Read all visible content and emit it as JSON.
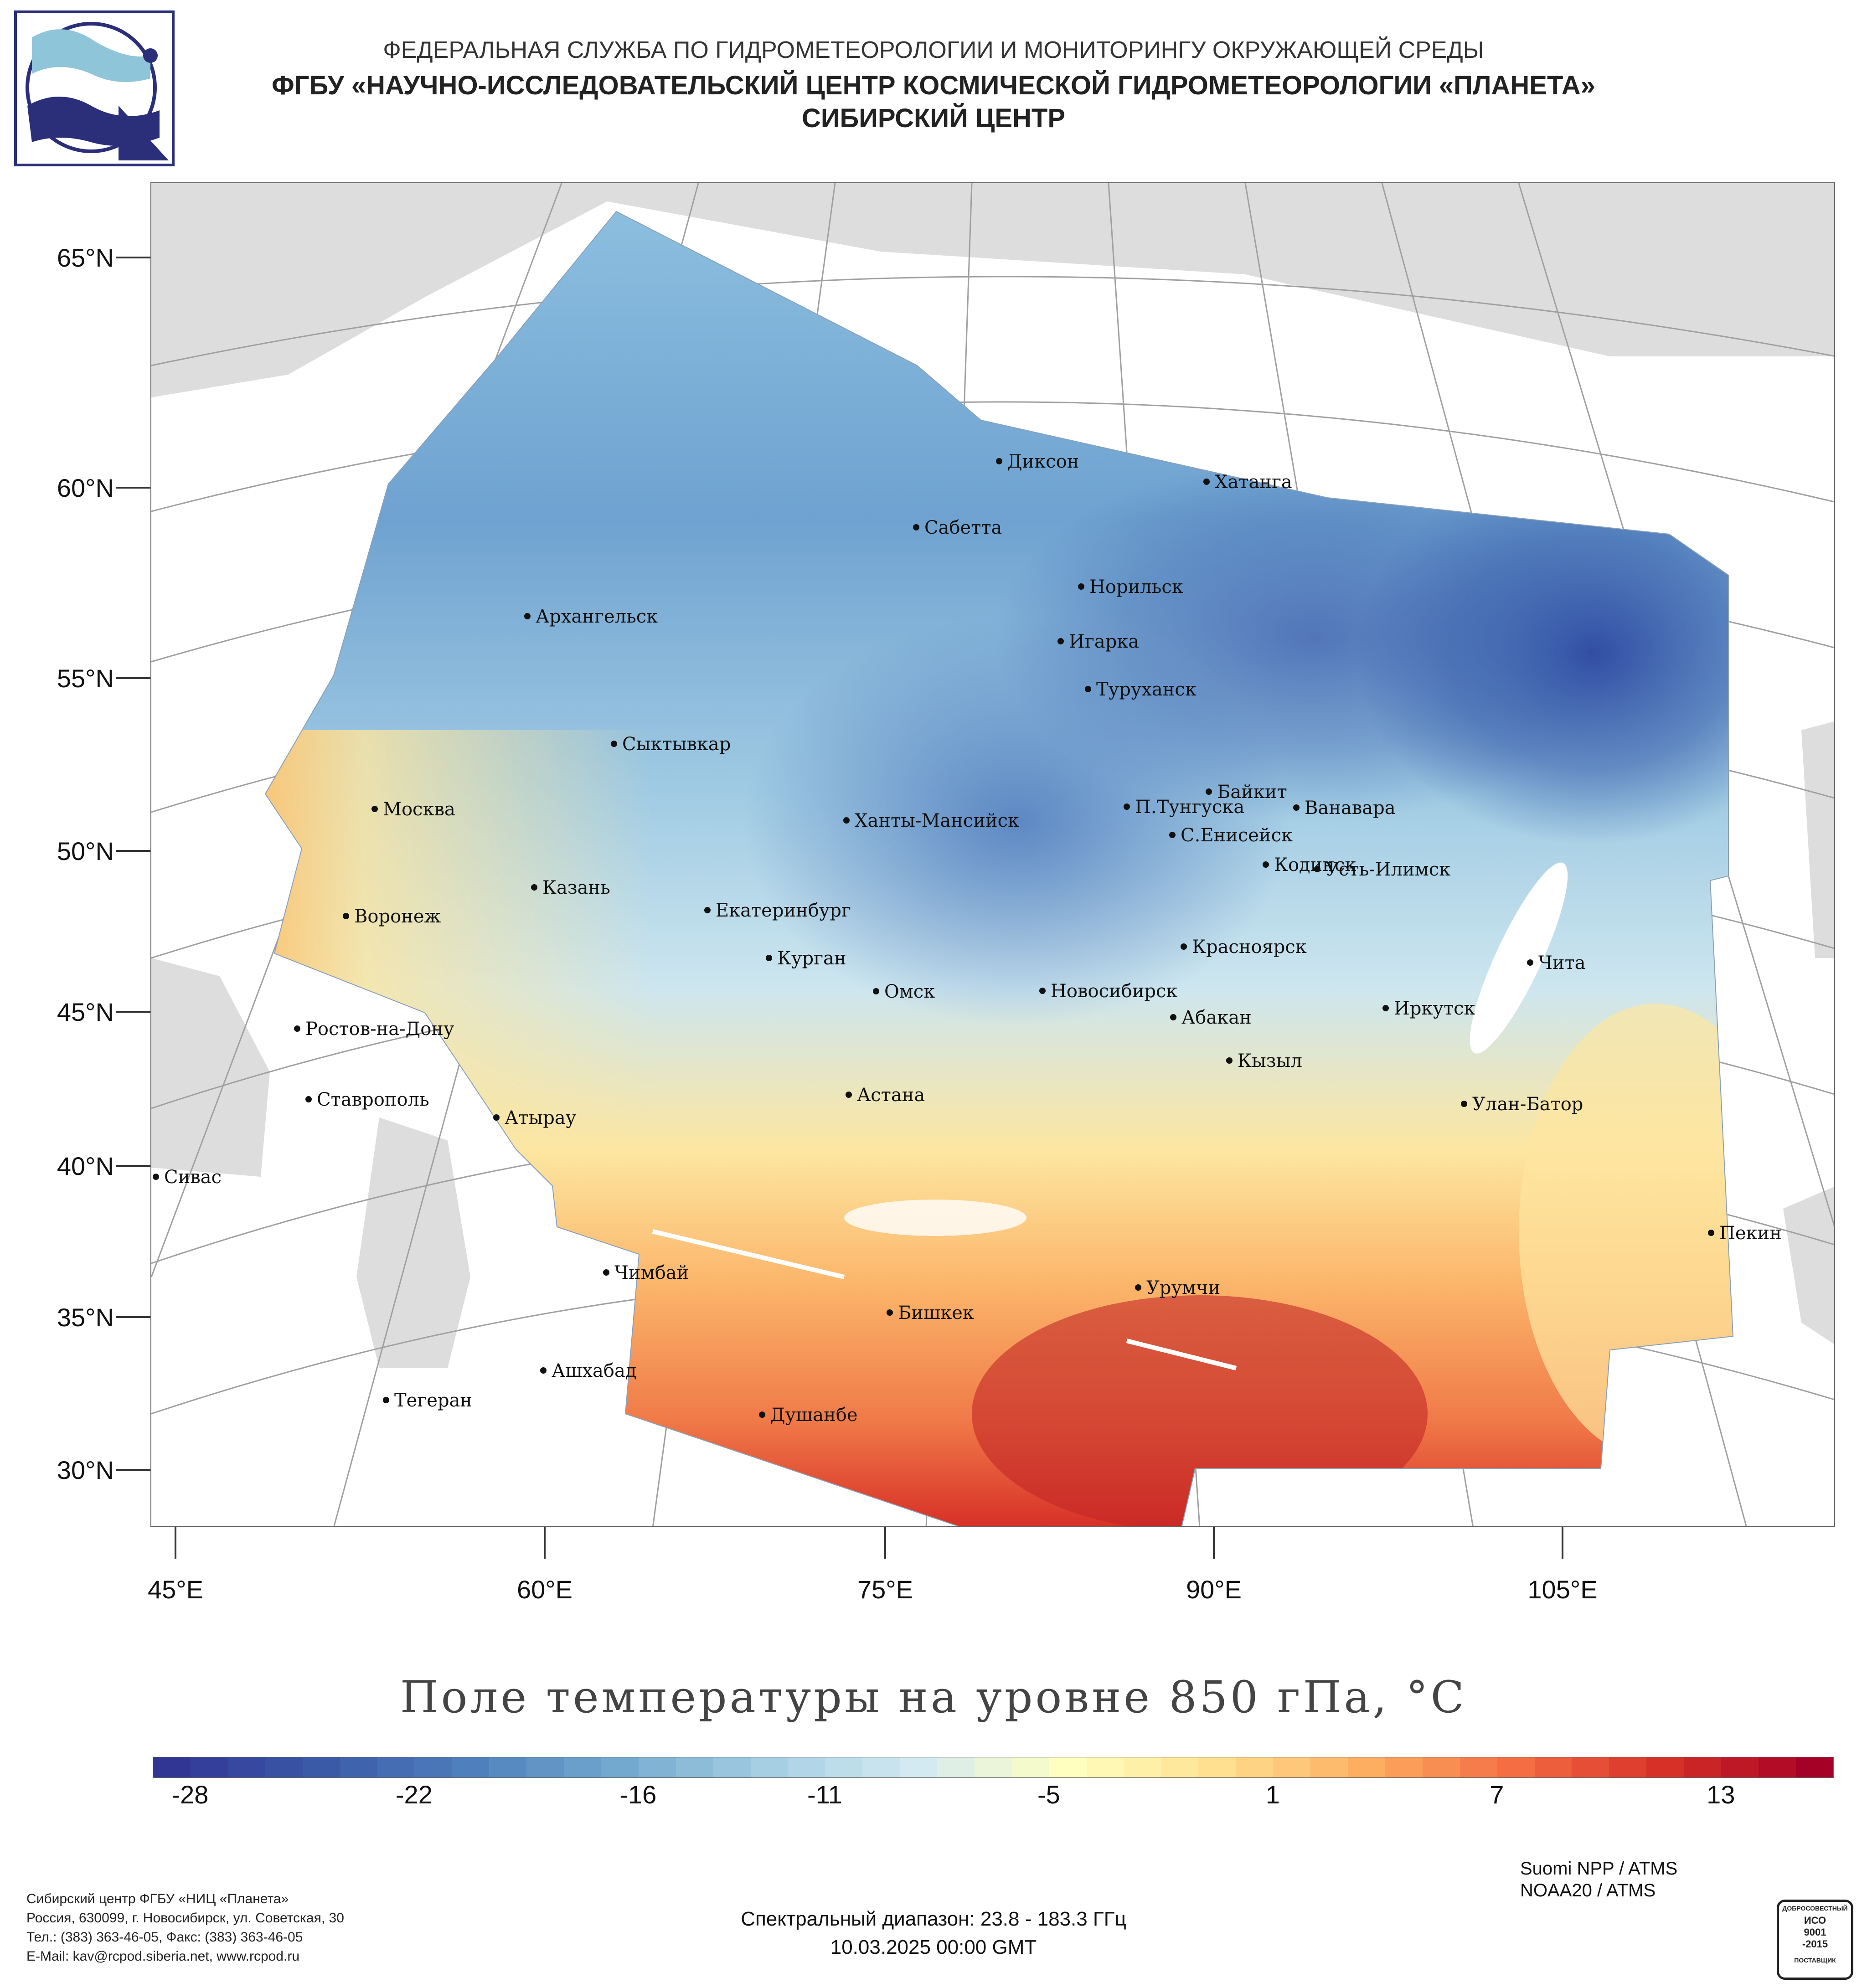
{
  "header": {
    "line1": "ФЕДЕРАЛЬНАЯ СЛУЖБА ПО ГИДРОМЕТЕОРОЛОГИИ И МОНИТОРИНГУ ОКРУЖАЮЩЕЙ СРЕДЫ",
    "line2": "ФГБУ «НАУЧНО-ИССЛЕДОВАТЕЛЬСКИЙ ЦЕНТР КОСМИЧЕСКОЙ ГИДРОМЕТЕОРОЛОГИИ «ПЛАНЕТА»",
    "line3": "СИБИРСКИЙ ЦЕНТР"
  },
  "map": {
    "lat_labels": [
      "65°N",
      "60°N",
      "55°N",
      "50°N",
      "45°N",
      "40°N",
      "35°N",
      "30°N"
    ],
    "lon_labels": [
      "45°E",
      "60°E",
      "75°E",
      "90°E",
      "105°E"
    ],
    "cities": [
      "Диксон",
      "Хатанга",
      "Сабетта",
      "Норильск",
      "Архангельск",
      "Игарка",
      "Туруханск",
      "Сыктывкар",
      "Байкит",
      "Москва",
      "Ханты-Мансийск",
      "П.Тунгуска",
      "Ванавара",
      "С.Енисейск",
      "Кодинск",
      "Усть-Илимск",
      "Казань",
      "Воронеж",
      "Екатеринбург",
      "Красноярск",
      "Курган",
      "Чита",
      "Омск",
      "Новосибирск",
      "Иркутск",
      "Ростов-на-Дону",
      "Абакан",
      "Кызыл",
      "Ставрополь",
      "Астана",
      "Улан-Батор",
      "Атырау",
      "Сивас",
      "Пекин",
      "Чимбай",
      "Урумчи",
      "Бишкек",
      "Ашхабад",
      "Тегеран",
      "Душанбе"
    ],
    "colors": {
      "land": "#dddddd",
      "water": "#ffffff",
      "border": "#bbbbbb",
      "grid": "#9a9a9a"
    }
  },
  "map_title": "Поле температуры на уровне 850 гПа, °C",
  "colorbar": {
    "ticks": [
      "-28",
      "-22",
      "-16",
      "-11",
      "-5",
      "1",
      "7",
      "13"
    ],
    "min": -29,
    "max": 16,
    "stops": [
      "#313695",
      "#3a5aa8",
      "#4f7fbd",
      "#74a9cf",
      "#a6cfe3",
      "#d4eaf2",
      "#ffffbf",
      "#fee090",
      "#fdae61",
      "#f46d43",
      "#d73027",
      "#a50026"
    ]
  },
  "footer": {
    "left": [
      "Сибирский центр ФГБУ «НИЦ «Планета»",
      "Россия, 630099, г. Новосибирск, ул. Советская, 30",
      "Тел.: (383) 363-46-05, Факс: (383) 363-46-05",
      "E-Mail: kav@rcpod.siberia.net, www.rcpod.ru"
    ],
    "spectral": "Спектральный диапазон: 23.8 - 183.3 ГГц",
    "datetime": "10.03.2025 00:00 GMT",
    "instruments": [
      "Suomi NPP / ATMS",
      "NOAA20 / ATMS"
    ],
    "iso": [
      "ДОБРОСОВЕСТНЫЙ",
      "ИСО",
      "9001",
      "-2015",
      "ПОСТАВЩИК"
    ]
  }
}
